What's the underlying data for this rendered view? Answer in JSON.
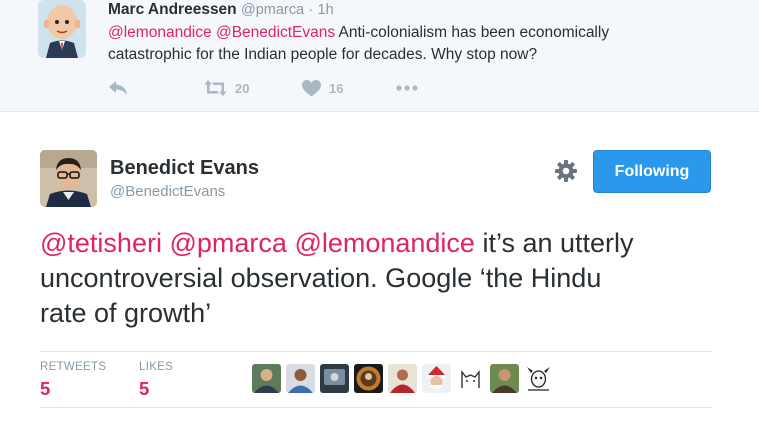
{
  "parent_tweet": {
    "name": "Marc Andreessen",
    "handle": "@pmarca",
    "separator": "·",
    "time": "1h",
    "mention_1": "@lemonandice",
    "mention_2": "@BenedictEvans",
    "text_line_1": "Anti-colonialism has been economically",
    "text_line_2": "catastrophic for the Indian people for decades. Why stop now?",
    "retweet_count": "20",
    "like_count": "16",
    "icons": [
      "reply-icon",
      "retweet-icon",
      "heart-icon",
      "more-icon"
    ]
  },
  "main_tweet": {
    "name": "Benedict Evans",
    "handle": "@BenedictEvans",
    "follow_label": "Following",
    "mention_1": "@tetisheri",
    "mention_2": "@pmarca",
    "mention_3": "@lemonandice",
    "text_line_1": "it’s an utterly",
    "text_line_2": "uncontroversial observation. Google ‘the Hindu",
    "text_line_3": "rate of growth’",
    "stats": {
      "retweets_label": "RETWEETS",
      "retweets_value": "5",
      "likes_label": "LIKES",
      "likes_value": "5"
    },
    "likers_count": 10
  },
  "colors": {
    "mention": "#e0245e",
    "follow_button": "#2b98ec",
    "muted": "#8899a6",
    "parent_background": "#f5f8fa"
  }
}
